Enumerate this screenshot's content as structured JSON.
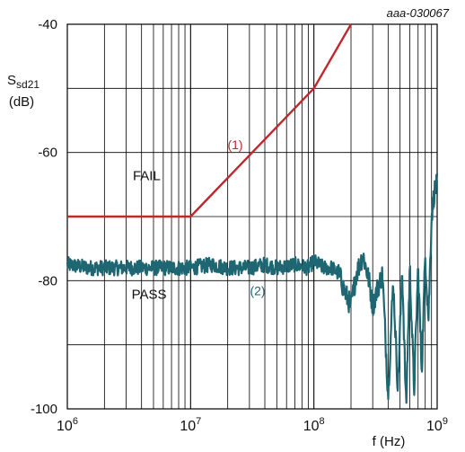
{
  "figure_id": "aaa-030067",
  "colors": {
    "limit": "#c0272d",
    "measured": "#1d6672",
    "grid": "#000000",
    "text": "#111111"
  },
  "chart_data": {
    "type": "line",
    "x_scale": "log",
    "xlim": [
      1000000,
      1000000000
    ],
    "ylim": [
      -100,
      -40
    ],
    "x_tick_labels": [
      {
        "base": "10",
        "exp": "6"
      },
      {
        "base": "10",
        "exp": "7"
      },
      {
        "base": "10",
        "exp": "8"
      },
      {
        "base": "10",
        "exp": "9"
      }
    ],
    "y_tick_labels": [
      "-40",
      "-60",
      "-80",
      "-100"
    ],
    "y_ticks": [
      -40,
      -60,
      -80,
      -100
    ],
    "grid": true,
    "xlabel": "f (Hz)",
    "ylabel": {
      "main": "S",
      "sub": "sd21",
      "unit": "(dB)"
    },
    "annotations": {
      "fail": "FAIL",
      "pass": "PASS"
    },
    "series": [
      {
        "label": "(1)",
        "color": "#c0272d",
        "x": [
          1000000,
          10000000,
          100000000,
          200000000
        ],
        "y": [
          -70,
          -70,
          -50,
          -40
        ]
      },
      {
        "label": "(2)",
        "color": "#1d6672",
        "x": [
          1000000,
          1500000,
          2000000,
          3000000,
          4000000,
          5000000,
          7000000,
          10000000,
          15000000,
          20000000,
          30000000,
          40000000,
          50000000,
          70000000,
          90000000,
          100000000,
          120000000,
          140000000,
          160000000,
          180000000,
          200000000,
          220000000,
          250000000,
          280000000,
          300000000,
          330000000,
          360000000,
          400000000,
          440000000,
          480000000,
          520000000,
          560000000,
          600000000,
          650000000,
          700000000,
          750000000,
          800000000,
          850000000,
          900000000,
          950000000,
          1000000000
        ],
        "y": [
          -77.5,
          -78,
          -78,
          -78,
          -78,
          -78,
          -78,
          -78,
          -77.5,
          -78,
          -78,
          -77.5,
          -78,
          -77.5,
          -78,
          -77,
          -78,
          -78,
          -79,
          -82,
          -84,
          -79,
          -76,
          -80,
          -84,
          -81,
          -79,
          -98,
          -80,
          -97,
          -78,
          -100,
          -78,
          -97,
          -78,
          -94,
          -76,
          -86,
          -70,
          -66,
          -65
        ]
      }
    ]
  }
}
